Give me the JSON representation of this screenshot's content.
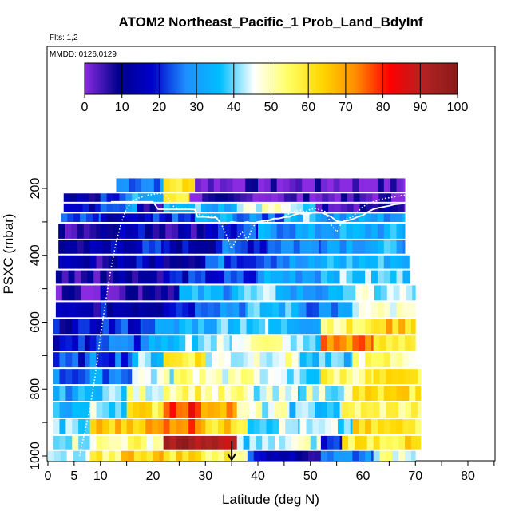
{
  "chart_data": {
    "type": "heatmap",
    "title": "ATOM2 Northeast_Pacific_1 Prob_Land_BdyInf",
    "subtitle_flights": "Flts: 1,2",
    "subtitle_dates": "MMDD: 0126,0129",
    "xlabel": "Latitude (deg N)",
    "ylabel": "PSXC (mbar)",
    "xlim": [
      0,
      85
    ],
    "ylim": [
      1000,
      130
    ],
    "y_reversed": true,
    "x_ticks": [
      0,
      5,
      10,
      20,
      30,
      40,
      50,
      60,
      70,
      80
    ],
    "x_tick_labels": [
      "0",
      "5",
      "10",
      "20",
      "30",
      "40",
      "50",
      "60",
      "70",
      "80"
    ],
    "y_ticks": [
      200,
      400,
      600,
      800,
      1000
    ],
    "y_tick_labels": [
      "200",
      "400",
      "600",
      "800",
      "1000"
    ],
    "colorbar": {
      "range": [
        0,
        100
      ],
      "ticks": [
        0,
        10,
        20,
        30,
        40,
        50,
        60,
        70,
        80,
        90,
        100
      ],
      "tick_labels": [
        "0",
        "10",
        "20",
        "30",
        "40",
        "50",
        "60",
        "70",
        "80",
        "90",
        "100"
      ],
      "colors": [
        "#8a2be2",
        "#00008b",
        "#0000cd",
        "#1e90ff",
        "#00bfff",
        "#ffffff",
        "#ffff66",
        "#ffd700",
        "#ff8c00",
        "#ff0000",
        "#b22222",
        "#8b1a1a"
      ]
    },
    "marker_arrow_latitude": 35,
    "layers": [
      {
        "p_top": 170,
        "p_bot": 215,
        "segments": [
          [
            13,
            22,
            28
          ],
          [
            22,
            28,
            60
          ],
          [
            28,
            68,
            2
          ]
        ]
      },
      {
        "p_top": 215,
        "p_bot": 245,
        "segments": [
          [
            3,
            10,
            12
          ],
          [
            10,
            16,
            25
          ],
          [
            16,
            22,
            32
          ],
          [
            22,
            27,
            60
          ],
          [
            27,
            68,
            3
          ]
        ]
      },
      {
        "p_top": 245,
        "p_bot": 275,
        "segments": [
          [
            3,
            10,
            15
          ],
          [
            10,
            17,
            30
          ],
          [
            17,
            22,
            10
          ],
          [
            22,
            30,
            38
          ],
          [
            30,
            36,
            35
          ],
          [
            36,
            45,
            48
          ],
          [
            45,
            51,
            40
          ],
          [
            51,
            68,
            8
          ]
        ]
      },
      {
        "p_top": 275,
        "p_bot": 305,
        "segments": [
          [
            2.5,
            10,
            20
          ],
          [
            10,
            20,
            12
          ],
          [
            20,
            28,
            20
          ],
          [
            28,
            36,
            32
          ],
          [
            36,
            45,
            25
          ],
          [
            45,
            52,
            38
          ],
          [
            52,
            68,
            30
          ]
        ]
      },
      {
        "p_top": 305,
        "p_bot": 355,
        "segments": [
          [
            2,
            10,
            8
          ],
          [
            10,
            20,
            15
          ],
          [
            20,
            30,
            10
          ],
          [
            30,
            40,
            20
          ],
          [
            40,
            52,
            30
          ],
          [
            52,
            68,
            32
          ]
        ]
      },
      {
        "p_top": 355,
        "p_bot": 400,
        "segments": [
          [
            2,
            12,
            12
          ],
          [
            12,
            22,
            18
          ],
          [
            22,
            32,
            15
          ],
          [
            32,
            42,
            22
          ],
          [
            42,
            52,
            28
          ],
          [
            52,
            68,
            33
          ]
        ]
      },
      {
        "p_top": 400,
        "p_bot": 445,
        "segments": [
          [
            2,
            12,
            10
          ],
          [
            12,
            22,
            15
          ],
          [
            22,
            30,
            14
          ],
          [
            30,
            40,
            25
          ],
          [
            40,
            52,
            28
          ],
          [
            52,
            69,
            35
          ]
        ]
      },
      {
        "p_top": 445,
        "p_bot": 490,
        "segments": [
          [
            1.5,
            10,
            8
          ],
          [
            10,
            22,
            12
          ],
          [
            22,
            30,
            18
          ],
          [
            30,
            40,
            20
          ],
          [
            40,
            52,
            32
          ],
          [
            52,
            69,
            38
          ]
        ]
      },
      {
        "p_top": 490,
        "p_bot": 540,
        "segments": [
          [
            1.5,
            10,
            5
          ],
          [
            10,
            18,
            8
          ],
          [
            18,
            25,
            12
          ],
          [
            25,
            35,
            32
          ],
          [
            35,
            45,
            38
          ],
          [
            45,
            55,
            30
          ],
          [
            55,
            70,
            42
          ]
        ]
      },
      {
        "p_top": 540,
        "p_bot": 590,
        "segments": [
          [
            1.5,
            10,
            12
          ],
          [
            10,
            22,
            15
          ],
          [
            22,
            28,
            22
          ],
          [
            28,
            38,
            30
          ],
          [
            38,
            48,
            35
          ],
          [
            48,
            58,
            28
          ],
          [
            58,
            70,
            45
          ]
        ]
      },
      {
        "p_top": 590,
        "p_bot": 640,
        "segments": [
          [
            1,
            8,
            15
          ],
          [
            8,
            18,
            20
          ],
          [
            18,
            25,
            28
          ],
          [
            25,
            33,
            35
          ],
          [
            33,
            42,
            40
          ],
          [
            42,
            52,
            35
          ],
          [
            52,
            62,
            55
          ],
          [
            62,
            70,
            65
          ]
        ]
      },
      {
        "p_top": 640,
        "p_bot": 690,
        "segments": [
          [
            1,
            8,
            18
          ],
          [
            8,
            18,
            24
          ],
          [
            18,
            25,
            30
          ],
          [
            25,
            35,
            42
          ],
          [
            35,
            45,
            50
          ],
          [
            45,
            52,
            40
          ],
          [
            52,
            62,
            72
          ],
          [
            62,
            70,
            60
          ]
        ]
      },
      {
        "p_top": 690,
        "p_bot": 740,
        "segments": [
          [
            1,
            8,
            20
          ],
          [
            8,
            16,
            25
          ],
          [
            16,
            22,
            38
          ],
          [
            22,
            30,
            60
          ],
          [
            30,
            38,
            45
          ],
          [
            38,
            48,
            48
          ],
          [
            48,
            58,
            35
          ],
          [
            58,
            70,
            52
          ]
        ]
      },
      {
        "p_top": 740,
        "p_bot": 790,
        "segments": [
          [
            1,
            8,
            25
          ],
          [
            8,
            16,
            28
          ],
          [
            16,
            24,
            45
          ],
          [
            24,
            32,
            52
          ],
          [
            32,
            42,
            48
          ],
          [
            42,
            52,
            40
          ],
          [
            52,
            62,
            55
          ],
          [
            62,
            71,
            58
          ]
        ]
      },
      {
        "p_top": 790,
        "p_bot": 840,
        "segments": [
          [
            1,
            8,
            32
          ],
          [
            8,
            15,
            40
          ],
          [
            15,
            22,
            48
          ],
          [
            22,
            30,
            55
          ],
          [
            30,
            38,
            50
          ],
          [
            38,
            48,
            42
          ],
          [
            48,
            58,
            45
          ],
          [
            58,
            71,
            60
          ]
        ]
      },
      {
        "p_top": 840,
        "p_bot": 890,
        "segments": [
          [
            1,
            8,
            35
          ],
          [
            8,
            15,
            42
          ],
          [
            15,
            22,
            60
          ],
          [
            22,
            28,
            80
          ],
          [
            28,
            36,
            72
          ],
          [
            36,
            46,
            45
          ],
          [
            46,
            56,
            38
          ],
          [
            56,
            71,
            55
          ]
        ]
      },
      {
        "p_top": 890,
        "p_bot": 940,
        "segments": [
          [
            1,
            8,
            38
          ],
          [
            8,
            15,
            65
          ],
          [
            15,
            22,
            68
          ],
          [
            22,
            30,
            75
          ],
          [
            30,
            38,
            62
          ],
          [
            38,
            48,
            42
          ],
          [
            48,
            58,
            40
          ],
          [
            58,
            71,
            60
          ]
        ]
      },
      {
        "p_top": 940,
        "p_bot": 985,
        "segments": [
          [
            1,
            8,
            45
          ],
          [
            8,
            14,
            50
          ],
          [
            14,
            22,
            52
          ],
          [
            22,
            30,
            95
          ],
          [
            30,
            36,
            88
          ],
          [
            36,
            44,
            40
          ],
          [
            44,
            52,
            45
          ],
          [
            52,
            56,
            20
          ],
          [
            56,
            71,
            60
          ]
        ]
      },
      {
        "p_top": 985,
        "p_bot": 1030,
        "segments": [
          [
            0,
            8,
            40
          ],
          [
            8,
            14,
            55
          ],
          [
            14,
            22,
            65
          ],
          [
            22,
            30,
            62
          ],
          [
            30,
            38,
            55
          ],
          [
            38,
            46,
            20
          ],
          [
            46,
            52,
            10
          ],
          [
            52,
            62,
            28
          ],
          [
            62,
            70,
            48
          ]
        ]
      }
    ],
    "boundary_line_dotted": [
      [
        6,
        1000
      ],
      [
        7,
        930
      ],
      [
        8,
        860
      ],
      [
        9,
        760
      ],
      [
        10,
        640
      ],
      [
        11,
        540
      ],
      [
        12,
        440
      ],
      [
        13,
        360
      ],
      [
        14,
        300
      ],
      [
        15,
        260
      ],
      [
        16,
        240
      ],
      [
        17,
        230
      ],
      [
        18,
        225
      ],
      [
        19,
        220
      ],
      [
        20,
        218
      ],
      [
        21,
        215
      ],
      [
        22,
        215
      ],
      [
        23,
        230
      ],
      [
        24,
        255
      ],
      [
        25,
        262
      ],
      [
        26,
        260
      ],
      [
        27,
        262
      ],
      [
        28,
        265
      ],
      [
        29,
        280
      ],
      [
        30,
        285
      ],
      [
        31,
        282
      ],
      [
        32,
        284
      ],
      [
        33,
        305
      ],
      [
        34,
        340
      ],
      [
        35,
        380
      ],
      [
        36,
        350
      ],
      [
        37,
        330
      ],
      [
        38,
        355
      ],
      [
        39,
        315
      ],
      [
        40,
        300
      ],
      [
        41,
        295
      ],
      [
        42,
        300
      ],
      [
        43,
        292
      ],
      [
        44,
        290
      ],
      [
        45,
        285
      ],
      [
        46,
        275
      ],
      [
        47,
        268
      ],
      [
        48,
        265
      ],
      [
        49,
        270
      ],
      [
        50,
        262
      ],
      [
        51,
        260
      ],
      [
        52,
        265
      ],
      [
        53,
        270
      ],
      [
        54,
        310
      ],
      [
        55,
        330
      ],
      [
        56,
        300
      ],
      [
        57,
        290
      ],
      [
        58,
        285
      ],
      [
        59,
        270
      ],
      [
        60,
        255
      ],
      [
        61,
        245
      ],
      [
        62,
        240
      ],
      [
        63,
        235
      ],
      [
        64,
        230
      ],
      [
        65,
        228
      ],
      [
        66,
        225
      ],
      [
        67,
        222
      ],
      [
        68,
        220
      ]
    ],
    "boundary_line_solid": [
      [
        12,
        240
      ],
      [
        15,
        240
      ],
      [
        16,
        240
      ],
      [
        20,
        240
      ],
      [
        21,
        262
      ],
      [
        22,
        262
      ],
      [
        24,
        262
      ],
      [
        25,
        262
      ],
      [
        26,
        262
      ],
      [
        27,
        262
      ],
      [
        28,
        263
      ],
      [
        28.5,
        285
      ],
      [
        30,
        285
      ],
      [
        31,
        287
      ],
      [
        32,
        287
      ],
      [
        33,
        305
      ],
      [
        34,
        305
      ],
      [
        35,
        300
      ],
      [
        36,
        302
      ],
      [
        37,
        303
      ],
      [
        38,
        300
      ],
      [
        39,
        305
      ],
      [
        40,
        300
      ],
      [
        41,
        298
      ],
      [
        42,
        296
      ],
      [
        43,
        290
      ],
      [
        44,
        290
      ],
      [
        45,
        286
      ],
      [
        46,
        285
      ],
      [
        47,
        278
      ],
      [
        48,
        275
      ],
      [
        49,
        278
      ],
      [
        50,
        275
      ],
      [
        51,
        270
      ],
      [
        52,
        272
      ],
      [
        53,
        278
      ],
      [
        54,
        285
      ],
      [
        55,
        298
      ],
      [
        56,
        300
      ],
      [
        57,
        296
      ],
      [
        58,
        292
      ],
      [
        59,
        285
      ],
      [
        60,
        280
      ],
      [
        61,
        270
      ],
      [
        62,
        262
      ],
      [
        63,
        258
      ],
      [
        64,
        255
      ],
      [
        65,
        252
      ],
      [
        66,
        248
      ],
      [
        67,
        246
      ],
      [
        68,
        245
      ]
    ]
  }
}
